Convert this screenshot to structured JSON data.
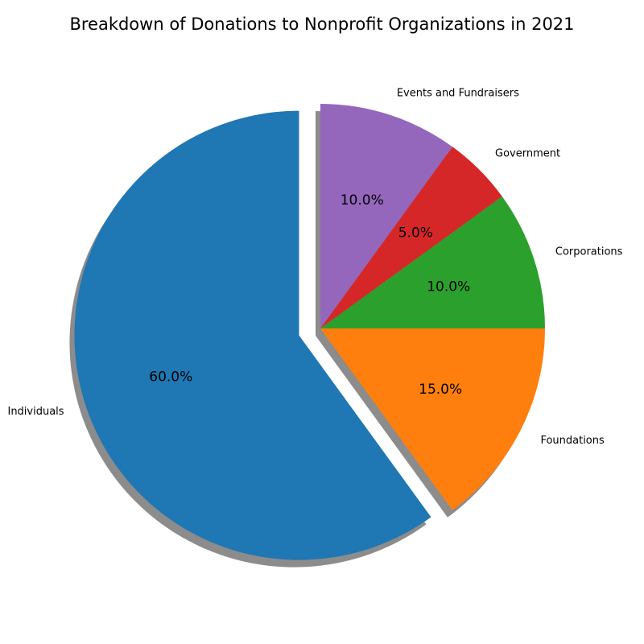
{
  "chart_data": {
    "type": "pie",
    "title": "Breakdown of Donations to Nonprofit Organizations in 2021",
    "categories": [
      "Individuals",
      "Foundations",
      "Corporations",
      "Government",
      "Events and Fundraisers"
    ],
    "values": [
      60,
      15,
      10,
      5,
      10
    ],
    "percent_labels": [
      "60.0%",
      "15.0%",
      "10.0%",
      "5.0%",
      "10.0%"
    ],
    "colors": [
      "#1f77b4",
      "#ff7f0e",
      "#2ca02c",
      "#d62728",
      "#9467bd"
    ],
    "start_angle_deg": 90,
    "direction": "counterclockwise",
    "exploded": [
      "Individuals"
    ],
    "shadow": true
  }
}
